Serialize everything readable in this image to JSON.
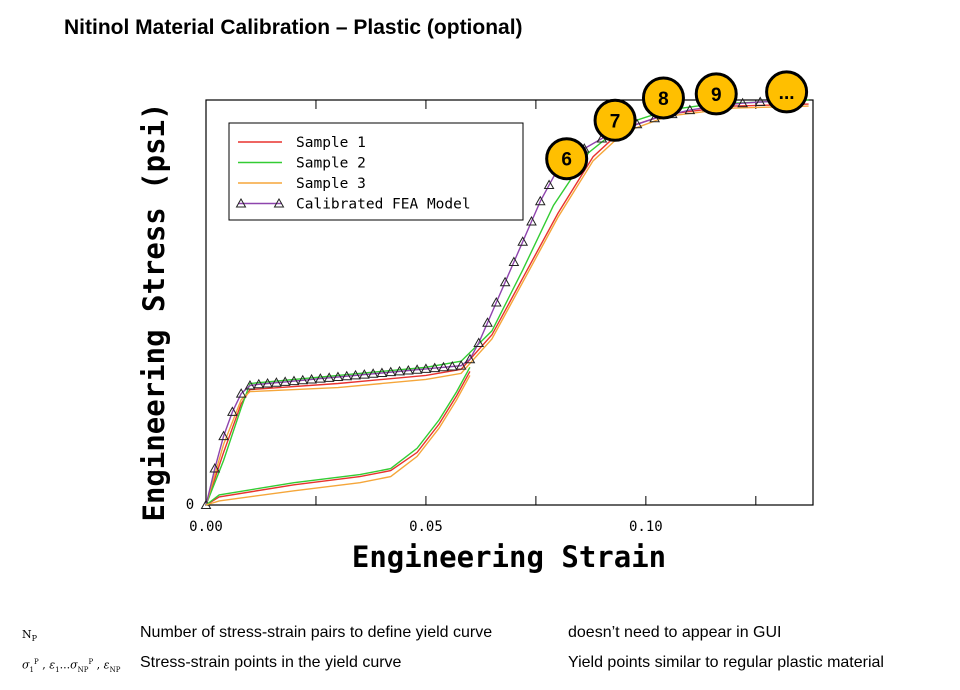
{
  "slide": {
    "title": "Nitinol Material Calibration – Plastic (optional)"
  },
  "chart_data": {
    "type": "line",
    "title": "",
    "xlabel": "Engineering Strain",
    "ylabel": "Engineering Stress (psi)",
    "xlim": [
      0,
      0.138
    ],
    "ylim": [
      0,
      1
    ],
    "xticks": [
      {
        "value": 0.0,
        "label": "0.00"
      },
      {
        "value": 0.05,
        "label": "0.05"
      },
      {
        "value": 0.1,
        "label": "0.10"
      }
    ],
    "yticks": [
      {
        "value": 0,
        "label": "0"
      }
    ],
    "legend_position": "top-left",
    "series": [
      {
        "name": "Sample 1",
        "color": "#e8322e",
        "marker": "none",
        "points": [
          [
            0,
            0
          ],
          [
            0.004,
            0.13
          ],
          [
            0.008,
            0.25
          ],
          [
            0.01,
            0.285
          ],
          [
            0.03,
            0.3
          ],
          [
            0.05,
            0.32
          ],
          [
            0.058,
            0.335
          ],
          [
            0.065,
            0.42
          ],
          [
            0.072,
            0.56
          ],
          [
            0.08,
            0.72
          ],
          [
            0.088,
            0.86
          ],
          [
            0.095,
            0.93
          ],
          [
            0.105,
            0.965
          ],
          [
            0.12,
            0.985
          ],
          [
            0.137,
            0.99
          ]
        ]
      },
      {
        "name": "Sample 2",
        "color": "#33cc33",
        "marker": "none",
        "points": [
          [
            0,
            0
          ],
          [
            0.004,
            0.11
          ],
          [
            0.008,
            0.24
          ],
          [
            0.01,
            0.3
          ],
          [
            0.03,
            0.32
          ],
          [
            0.05,
            0.34
          ],
          [
            0.058,
            0.355
          ],
          [
            0.065,
            0.43
          ],
          [
            0.072,
            0.58
          ],
          [
            0.079,
            0.74
          ],
          [
            0.087,
            0.87
          ],
          [
            0.095,
            0.94
          ],
          [
            0.105,
            0.975
          ],
          [
            0.115,
            0.99
          ],
          [
            0.137,
            1.0
          ]
        ]
      },
      {
        "name": "Sample 3",
        "color": "#f5a63a",
        "marker": "none",
        "points": [
          [
            0,
            0
          ],
          [
            0.004,
            0.15
          ],
          [
            0.008,
            0.26
          ],
          [
            0.01,
            0.28
          ],
          [
            0.03,
            0.29
          ],
          [
            0.05,
            0.31
          ],
          [
            0.058,
            0.325
          ],
          [
            0.065,
            0.41
          ],
          [
            0.072,
            0.55
          ],
          [
            0.08,
            0.71
          ],
          [
            0.088,
            0.85
          ],
          [
            0.095,
            0.92
          ],
          [
            0.105,
            0.96
          ],
          [
            0.12,
            0.98
          ],
          [
            0.137,
            0.985
          ]
        ]
      },
      {
        "name": "Calibrated FEA Model",
        "color": "#8e44ad",
        "marker": "triangle",
        "points": [
          [
            0,
            0
          ],
          [
            0.002,
            0.09
          ],
          [
            0.004,
            0.17
          ],
          [
            0.006,
            0.23
          ],
          [
            0.008,
            0.275
          ],
          [
            0.01,
            0.295
          ],
          [
            0.012,
            0.298
          ],
          [
            0.014,
            0.3
          ],
          [
            0.016,
            0.302
          ],
          [
            0.018,
            0.304
          ],
          [
            0.02,
            0.306
          ],
          [
            0.022,
            0.308
          ],
          [
            0.024,
            0.31
          ],
          [
            0.026,
            0.312
          ],
          [
            0.028,
            0.314
          ],
          [
            0.03,
            0.316
          ],
          [
            0.032,
            0.318
          ],
          [
            0.034,
            0.32
          ],
          [
            0.036,
            0.322
          ],
          [
            0.038,
            0.324
          ],
          [
            0.04,
            0.326
          ],
          [
            0.042,
            0.328
          ],
          [
            0.044,
            0.33
          ],
          [
            0.046,
            0.332
          ],
          [
            0.048,
            0.334
          ],
          [
            0.05,
            0.336
          ],
          [
            0.052,
            0.338
          ],
          [
            0.054,
            0.34
          ],
          [
            0.056,
            0.342
          ],
          [
            0.058,
            0.344
          ],
          [
            0.06,
            0.36
          ],
          [
            0.062,
            0.4
          ],
          [
            0.064,
            0.45
          ],
          [
            0.066,
            0.5
          ],
          [
            0.068,
            0.55
          ],
          [
            0.07,
            0.6
          ],
          [
            0.072,
            0.65
          ],
          [
            0.074,
            0.7
          ],
          [
            0.076,
            0.75
          ],
          [
            0.078,
            0.79
          ],
          [
            0.08,
            0.83
          ],
          [
            0.082,
            0.855
          ],
          [
            0.086,
            0.88
          ],
          [
            0.09,
            0.905
          ],
          [
            0.094,
            0.925
          ],
          [
            0.098,
            0.94
          ],
          [
            0.102,
            0.955
          ],
          [
            0.106,
            0.965
          ],
          [
            0.11,
            0.975
          ],
          [
            0.114,
            0.982
          ],
          [
            0.118,
            0.988
          ],
          [
            0.122,
            0.992
          ],
          [
            0.126,
            0.995
          ],
          [
            0.13,
            0.997
          ],
          [
            0.134,
            0.998
          ]
        ]
      },
      {
        "name": "Sample 1 unloading",
        "color": "#e8322e",
        "marker": "none",
        "legend": false,
        "points": [
          [
            0,
            0
          ],
          [
            0.003,
            0.02
          ],
          [
            0.02,
            0.05
          ],
          [
            0.035,
            0.07
          ],
          [
            0.042,
            0.085
          ],
          [
            0.048,
            0.13
          ],
          [
            0.053,
            0.2
          ],
          [
            0.057,
            0.27
          ],
          [
            0.06,
            0.33
          ]
        ]
      },
      {
        "name": "Sample 2 unloading",
        "color": "#33cc33",
        "marker": "none",
        "legend": false,
        "points": [
          [
            0,
            0
          ],
          [
            0.003,
            0.025
          ],
          [
            0.02,
            0.055
          ],
          [
            0.035,
            0.075
          ],
          [
            0.042,
            0.09
          ],
          [
            0.048,
            0.14
          ],
          [
            0.053,
            0.21
          ],
          [
            0.057,
            0.28
          ],
          [
            0.06,
            0.34
          ]
        ]
      },
      {
        "name": "Sample 3 unloading",
        "color": "#f5a63a",
        "marker": "none",
        "legend": false,
        "points": [
          [
            0,
            0
          ],
          [
            0.003,
            0.01
          ],
          [
            0.02,
            0.035
          ],
          [
            0.035,
            0.055
          ],
          [
            0.042,
            0.07
          ],
          [
            0.048,
            0.12
          ],
          [
            0.053,
            0.19
          ],
          [
            0.057,
            0.26
          ],
          [
            0.06,
            0.32
          ]
        ]
      }
    ],
    "annotations": [
      {
        "label": "6",
        "x": 0.082,
        "y": 0.855
      },
      {
        "label": "7",
        "x": 0.093,
        "y": 0.95
      },
      {
        "label": "8",
        "x": 0.104,
        "y": 1.005
      },
      {
        "label": "9",
        "x": 0.116,
        "y": 1.015
      },
      {
        "label": "...",
        "x": 0.132,
        "y": 1.02
      }
    ]
  },
  "parameters": [
    {
      "symbol": "NP",
      "description": "Number of stress-strain pairs to define yield curve",
      "note": "doesn’t need to appear in GUI"
    },
    {
      "symbol": "σ1P , ε1...σNPP , εNP",
      "description": "Stress-strain points in the yield curve",
      "note": "Yield points similar to regular plastic material"
    }
  ]
}
